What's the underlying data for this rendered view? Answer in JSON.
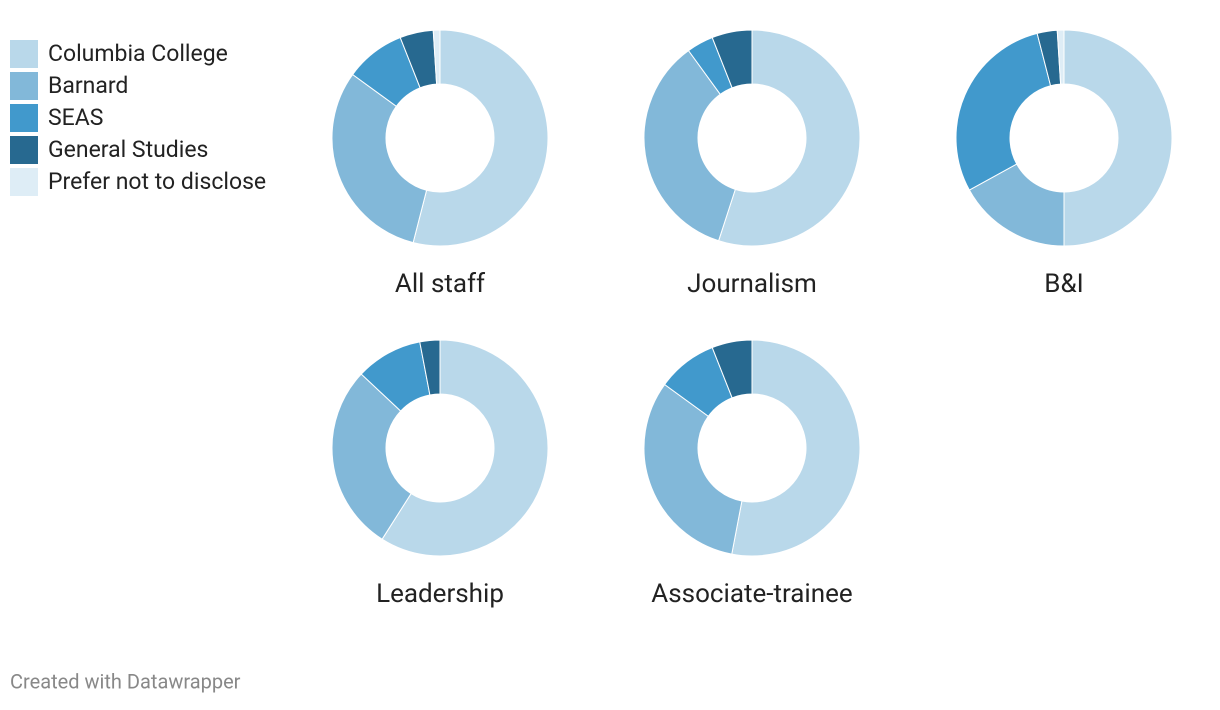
{
  "chart_data": {
    "type": "donut",
    "categories": [
      "Columbia College",
      "Barnard",
      "SEAS",
      "General Studies",
      "Prefer not to disclose"
    ],
    "colors": [
      "#b9d8ea",
      "#82b8d9",
      "#4199cc",
      "#276990",
      "#deedf6"
    ],
    "panels": [
      {
        "title": "All staff",
        "values": [
          54,
          31,
          9,
          5,
          1
        ]
      },
      {
        "title": "Journalism",
        "values": [
          55,
          35,
          4,
          6,
          0
        ]
      },
      {
        "title": "B&I",
        "values": [
          50,
          17,
          29,
          3,
          1
        ]
      },
      {
        "title": "Leadership",
        "values": [
          59,
          28,
          10,
          3,
          0
        ]
      },
      {
        "title": "Associate-trainee",
        "values": [
          53,
          32,
          9,
          6,
          0
        ]
      }
    ]
  },
  "credit": "Created with Datawrapper"
}
